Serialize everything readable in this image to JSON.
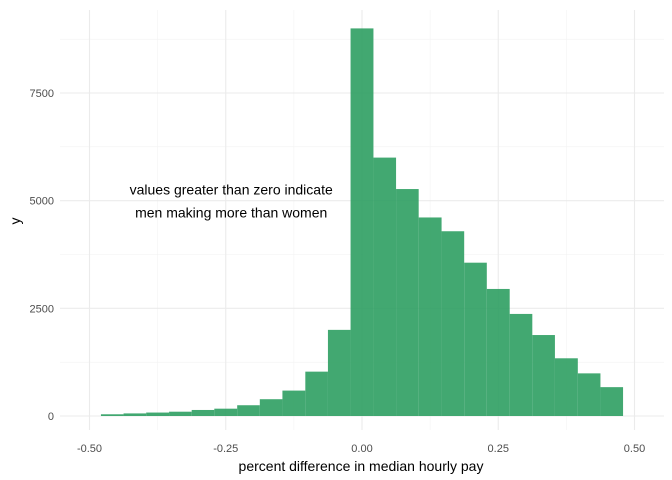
{
  "chart_data": {
    "type": "bar",
    "subtype": "histogram",
    "title": "",
    "xlabel": "percent difference in median hourly pay",
    "ylabel": "y",
    "xlim": [
      -0.5,
      0.5
    ],
    "ylim": [
      0,
      9000
    ],
    "x_ticks": [
      -0.5,
      -0.25,
      0.0,
      0.25,
      0.5
    ],
    "x_tick_labels": [
      "-0.50",
      "-0.25",
      "0.00",
      "0.25",
      "0.50"
    ],
    "y_ticks": [
      0,
      2500,
      5000,
      7500
    ],
    "y_tick_labels": [
      "0",
      "2500",
      "5000",
      "7500"
    ],
    "grid": true,
    "bar_color": "#2e9e62",
    "bin_width": 0.0417,
    "bins": [
      {
        "x0": -0.479,
        "x1": -0.4375,
        "count": 40
      },
      {
        "x0": -0.4375,
        "x1": -0.396,
        "count": 60
      },
      {
        "x0": -0.396,
        "x1": -0.354,
        "count": 80
      },
      {
        "x0": -0.354,
        "x1": -0.3125,
        "count": 100
      },
      {
        "x0": -0.3125,
        "x1": -0.271,
        "count": 140
      },
      {
        "x0": -0.271,
        "x1": -0.229,
        "count": 170
      },
      {
        "x0": -0.229,
        "x1": -0.1875,
        "count": 250
      },
      {
        "x0": -0.1875,
        "x1": -0.146,
        "count": 390
      },
      {
        "x0": -0.146,
        "x1": -0.104,
        "count": 590
      },
      {
        "x0": -0.104,
        "x1": -0.0625,
        "count": 1030
      },
      {
        "x0": -0.0625,
        "x1": -0.021,
        "count": 2000
      },
      {
        "x0": -0.021,
        "x1": 0.021,
        "count": 9000
      },
      {
        "x0": 0.021,
        "x1": 0.0625,
        "count": 6000
      },
      {
        "x0": 0.0625,
        "x1": 0.104,
        "count": 5270
      },
      {
        "x0": 0.104,
        "x1": 0.146,
        "count": 4610
      },
      {
        "x0": 0.146,
        "x1": 0.1875,
        "count": 4290
      },
      {
        "x0": 0.1875,
        "x1": 0.229,
        "count": 3560
      },
      {
        "x0": 0.229,
        "x1": 0.271,
        "count": 2950
      },
      {
        "x0": 0.271,
        "x1": 0.3125,
        "count": 2370
      },
      {
        "x0": 0.3125,
        "x1": 0.354,
        "count": 1880
      },
      {
        "x0": 0.354,
        "x1": 0.396,
        "count": 1340
      },
      {
        "x0": 0.396,
        "x1": 0.4375,
        "count": 990
      },
      {
        "x0": 0.4375,
        "x1": 0.479,
        "count": 670
      }
    ],
    "annotation": {
      "lines": [
        "values greater than zero indicate",
        "men making more than women"
      ],
      "x": -0.24,
      "y": 5000
    }
  }
}
